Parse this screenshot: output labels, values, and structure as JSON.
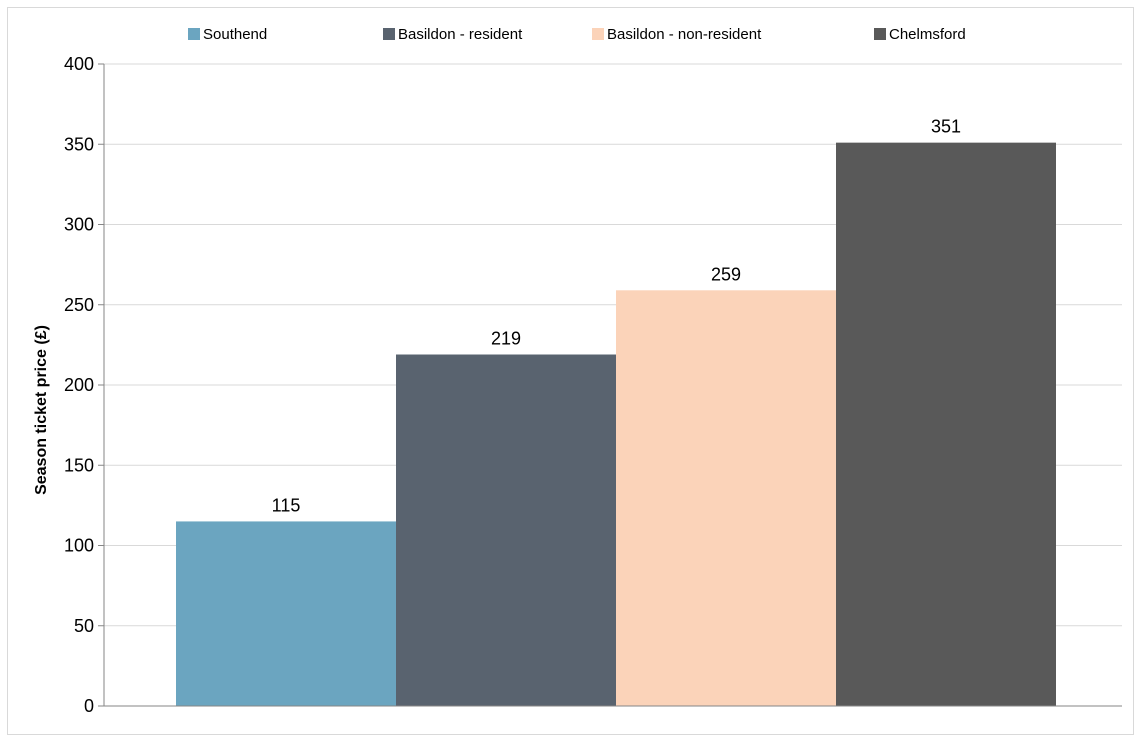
{
  "chart_data": {
    "type": "bar",
    "title": "",
    "xlabel": "",
    "ylabel": "Season ticket price (£)",
    "ylim": [
      0,
      400
    ],
    "yticks": [
      0,
      50,
      100,
      150,
      200,
      250,
      300,
      350,
      400
    ],
    "grid": true,
    "legend_position": "top",
    "series": [
      {
        "name": "Southend",
        "value": 115,
        "color": "#6ba5c0"
      },
      {
        "name": "Basildon - resident",
        "value": 219,
        "color": "#59636f"
      },
      {
        "name": "Basildon - non-resident",
        "value": 259,
        "color": "#fbd3b9"
      },
      {
        "name": "Chelmsford",
        "value": 351,
        "color": "#595959"
      }
    ]
  }
}
